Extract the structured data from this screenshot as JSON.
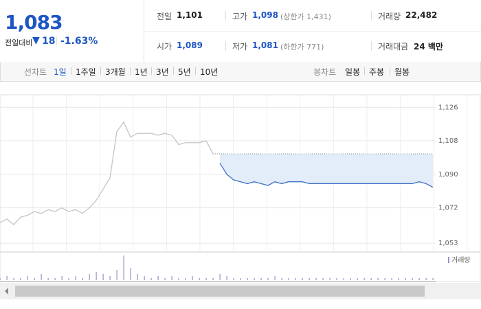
{
  "quote": {
    "price": "1,083",
    "change_label": "전일대비",
    "change": "18",
    "change_pct": "-1.63%"
  },
  "stats": [
    {
      "label": "전일",
      "value": "1,101"
    },
    {
      "label": "고가",
      "value": "1,098",
      "note": "(상한가 1,431)"
    },
    {
      "label": "거래량",
      "value": "22,482"
    },
    {
      "label": "시가",
      "value": "1,089"
    },
    {
      "label": "저가",
      "value": "1,081",
      "note": "(하한가 771)"
    },
    {
      "label": "거래대금",
      "value": "24 백만"
    }
  ],
  "tabs": {
    "line_chart": "선차트",
    "line_options": [
      "1일",
      "1주일",
      "3개월",
      "1년",
      "3년",
      "5년",
      "10년"
    ],
    "candle_chart": "봉차트",
    "candle_options": [
      "일봉",
      "주봉",
      "월봉"
    ]
  },
  "chart_data": {
    "type": "line",
    "ylim": [
      1049,
      1132
    ],
    "yticks": [
      {
        "value": 1053,
        "label": "1,053"
      },
      {
        "value": 1072,
        "label": "1,072"
      },
      {
        "value": 1090,
        "label": "1,090"
      },
      {
        "value": 1108,
        "label": "1,108"
      },
      {
        "value": 1126,
        "label": "1,126"
      }
    ],
    "grid": true,
    "reference": 1101,
    "series": [
      {
        "color": "#c4c4c4",
        "values": [
          1064,
          1066,
          1063,
          1067,
          1068,
          1070,
          1069,
          1071,
          1070,
          1072,
          1070,
          1071,
          1069,
          1072,
          1076,
          1082,
          1088,
          1113,
          1118,
          1110,
          1112,
          1112,
          1112,
          1111,
          1112,
          1111,
          1106,
          1107,
          1107,
          1107,
          1108,
          1101,
          null,
          null,
          null,
          null,
          null,
          null,
          null,
          null,
          null,
          null,
          null,
          null,
          null,
          null,
          null,
          null,
          null,
          null,
          null,
          null,
          null,
          null,
          null,
          null,
          null,
          null,
          null,
          null,
          null,
          null,
          null,
          null
        ]
      },
      {
        "color": "#3d72c8",
        "values": [
          null,
          null,
          null,
          null,
          null,
          null,
          null,
          null,
          null,
          null,
          null,
          null,
          null,
          null,
          null,
          null,
          null,
          null,
          null,
          null,
          null,
          null,
          null,
          null,
          null,
          null,
          null,
          null,
          null,
          null,
          null,
          null,
          1096,
          1090,
          1087,
          1086,
          1085,
          1086,
          1085,
          1084,
          1086,
          1085,
          1086,
          1086,
          1086,
          1085,
          1085,
          1085,
          1085,
          1085,
          1085,
          1085,
          1085,
          1085,
          1085,
          1085,
          1085,
          1085,
          1085,
          1085,
          1085,
          1086,
          1085,
          1083
        ]
      }
    ],
    "volume": {
      "name": "거래량",
      "color": "#9b8fc8",
      "values": [
        1,
        2,
        1,
        1,
        2,
        1,
        3,
        1,
        1,
        2,
        1,
        2,
        1,
        3,
        4,
        3,
        2,
        5,
        12,
        6,
        3,
        2,
        1,
        2,
        1,
        2,
        1,
        1,
        2,
        1,
        1,
        1,
        3,
        2,
        1,
        1,
        1,
        1,
        1,
        1,
        2,
        1,
        1,
        1,
        1,
        1,
        1,
        1,
        1,
        1,
        1,
        1,
        1,
        1,
        1,
        1,
        1,
        1,
        1,
        1,
        1,
        1,
        1,
        1
      ]
    }
  }
}
